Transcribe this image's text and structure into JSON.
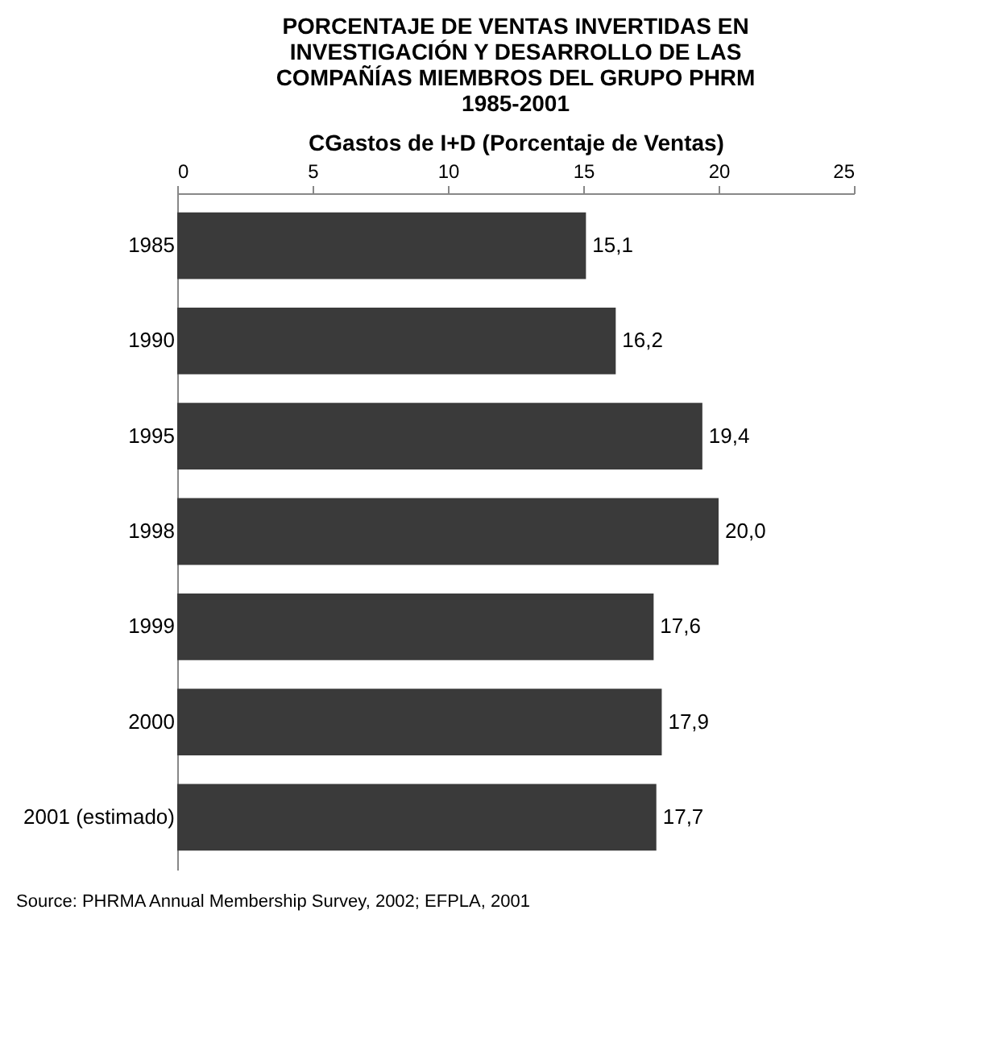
{
  "chart_data": {
    "type": "bar",
    "orientation": "horizontal",
    "title": "PORCENTAJE DE VENTAS INVERTIDAS EN INVESTIGACIÓN Y DESARROLLO DE LAS COMPAÑÍAS MIEMBROS DEL GRUPO PHRM 1985-2001",
    "xlabel": "CGastos de I+D (Porcentaje de Ventas)",
    "categories": [
      "1985",
      "1990",
      "1995",
      "1998",
      "1999",
      "2000",
      "2001 (estimado)"
    ],
    "values": [
      15.1,
      16.2,
      19.4,
      20.0,
      17.6,
      17.9,
      17.7
    ],
    "value_labels": [
      "15,1",
      "16,2",
      "19,4",
      "20,0",
      "17,6",
      "17,9",
      "17,7"
    ],
    "color": "#3a3a3a",
    "xlim": [
      0,
      25
    ],
    "xticks": [
      0,
      5,
      10,
      15,
      20,
      25
    ],
    "grid": false,
    "annotations": [
      "Source: PHRMA Annual Membership Survey, 2002; EFPLA, 2001"
    ]
  }
}
